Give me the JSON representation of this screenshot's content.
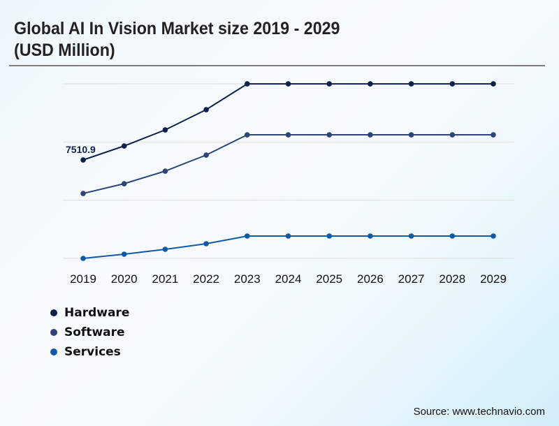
{
  "header": {
    "title_line1": "Global AI In Vision Market size 2019 - 2029",
    "title_line2": "(USD Million)"
  },
  "footer": {
    "source": "Source: www.technavio.com"
  },
  "chart_data": {
    "type": "line",
    "title": "Global AI In Vision Market size 2019 - 2029 (USD Million)",
    "xlabel": "",
    "ylabel": "",
    "categories": [
      "2019",
      "2020",
      "2021",
      "2022",
      "2023",
      "2024",
      "2025",
      "2026",
      "2027",
      "2028",
      "2029"
    ],
    "ylim": [
      0,
      13320
    ],
    "grid": true,
    "gridlines": [
      0,
      4440,
      8880,
      13320
    ],
    "legend_position": "bottom-left",
    "annotations": [
      {
        "series": "Hardware",
        "x": "2019",
        "label": "7510.9"
      }
    ],
    "series": [
      {
        "name": "Hardware",
        "color": "#0d1f4a",
        "values": [
          7510.9,
          8576,
          9802,
          11346,
          13317,
          13317,
          13317,
          13317,
          13317,
          13317,
          13317
        ]
      },
      {
        "name": "Software",
        "color": "#2e4478",
        "values": [
          4954,
          5700,
          6659,
          7884,
          9429,
          9429,
          9429,
          9429,
          9429,
          9429,
          9429
        ]
      },
      {
        "name": "Services",
        "color": "#0f5aa8",
        "values": [
          0,
          320,
          693,
          1119,
          1705,
          1705,
          1705,
          1705,
          1705,
          1705,
          1705
        ]
      }
    ]
  }
}
